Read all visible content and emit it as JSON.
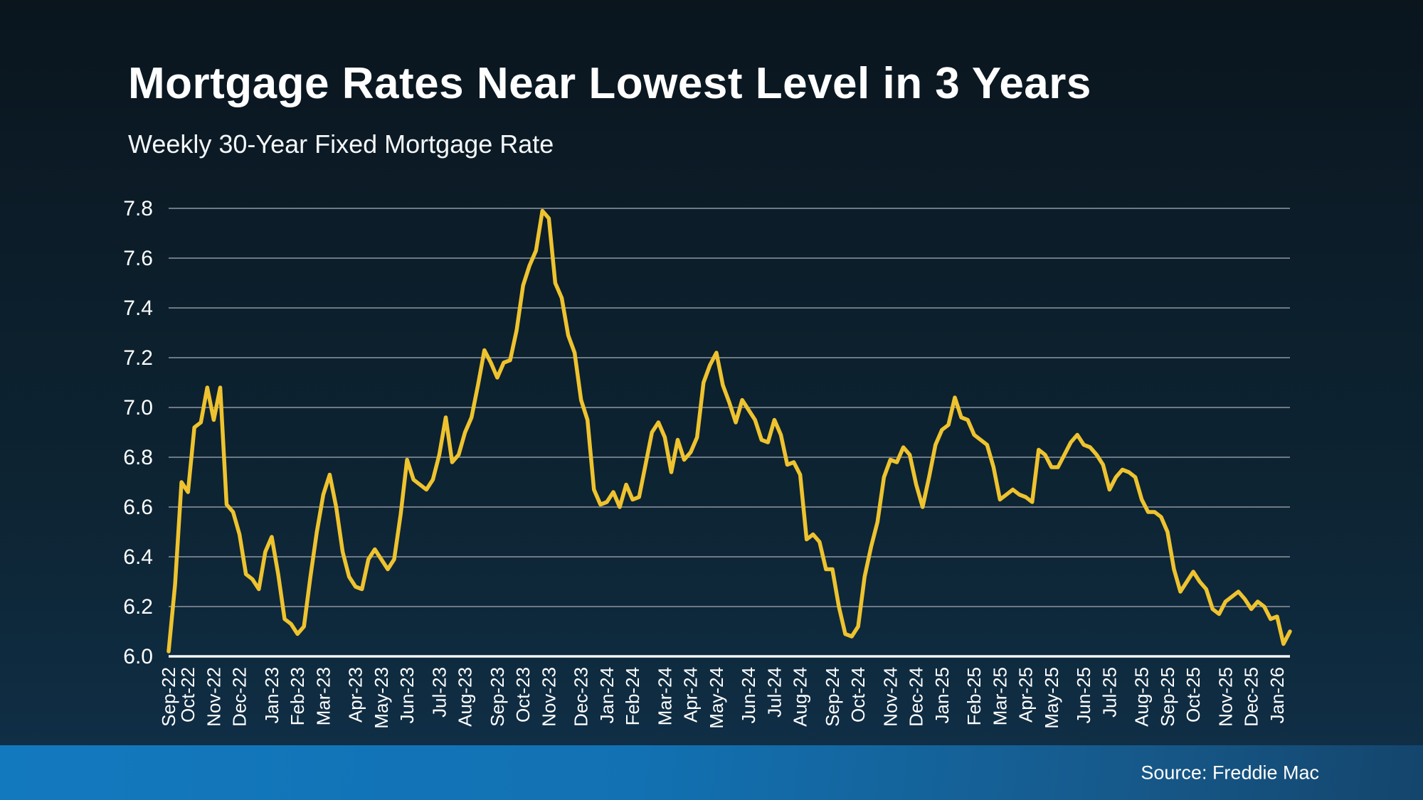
{
  "header": {
    "title": "Mortgage Rates Near Lowest Level in 3 Years",
    "subtitle": "Weekly 30-Year Fixed Mortgage Rate"
  },
  "footer": {
    "source": "Source: Freddie Mac"
  },
  "colors": {
    "background_top": "#0a151e",
    "background_bottom": "#103049",
    "line": "#eec32f",
    "gridline": "#6e7a85",
    "axis_line": "#f5f7f8",
    "text": "#ffffff",
    "footer_bar_left": "#1379bf",
    "footer_bar_right": "#14456c"
  },
  "chart_data": {
    "type": "line",
    "title": "Mortgage Rates Near Lowest Level in 3 Years",
    "subtitle": "Weekly 30-Year Fixed Mortgage Rate",
    "source": "Source: Freddie Mac",
    "legend": "none",
    "grid": true,
    "ylim": [
      6.0,
      7.8
    ],
    "y_ticks": [
      6.0,
      6.2,
      6.4,
      6.6,
      6.8,
      7.0,
      7.2,
      7.4,
      7.6,
      7.8
    ],
    "x_tick_labels": [
      "Sep-22",
      "Oct-22",
      "Nov-22",
      "Dec-22",
      "Jan-23",
      "Feb-23",
      "Mar-23",
      "Apr-23",
      "May-23",
      "Jun-23",
      "Jul-23",
      "Aug-23",
      "Sep-23",
      "Oct-23",
      "Nov-23",
      "Dec-23",
      "Jan-24",
      "Feb-24",
      "Mar-24",
      "Apr-24",
      "May-24",
      "Jun-24",
      "Jul-24",
      "Aug-24",
      "Sep-24",
      "Oct-24",
      "Nov-24",
      "Dec-24",
      "Jan-25",
      "Feb-25",
      "Mar-25",
      "Apr-25",
      "May-25",
      "Jun-25",
      "Jul-25",
      "Aug-25",
      "Sep-25",
      "Oct-25",
      "Nov-25",
      "Dec-25",
      "Jan-26"
    ],
    "x_tick_indices": [
      0,
      3,
      7,
      11,
      16,
      20,
      24,
      29,
      33,
      37,
      42,
      46,
      51,
      55,
      59,
      64,
      68,
      72,
      77,
      81,
      85,
      90,
      94,
      98,
      103,
      107,
      112,
      116,
      120,
      125,
      129,
      133,
      137,
      142,
      146,
      151,
      155,
      159,
      164,
      168,
      172
    ],
    "series": [
      {
        "name": "Weekly 30-Year Fixed Mortgage Rate",
        "frequency": "weekly",
        "color": "#eec32f",
        "values": [
          6.02,
          6.29,
          6.7,
          6.66,
          6.92,
          6.94,
          7.08,
          6.95,
          7.08,
          6.61,
          6.58,
          6.49,
          6.33,
          6.31,
          6.27,
          6.42,
          6.48,
          6.33,
          6.15,
          6.13,
          6.09,
          6.12,
          6.32,
          6.5,
          6.65,
          6.73,
          6.6,
          6.42,
          6.32,
          6.28,
          6.27,
          6.39,
          6.43,
          6.39,
          6.35,
          6.39,
          6.57,
          6.79,
          6.71,
          6.69,
          6.67,
          6.71,
          6.81,
          6.96,
          6.78,
          6.81,
          6.9,
          6.96,
          7.09,
          7.23,
          7.18,
          7.12,
          7.18,
          7.19,
          7.31,
          7.49,
          7.57,
          7.63,
          7.79,
          7.76,
          7.5,
          7.44,
          7.29,
          7.22,
          7.03,
          6.95,
          6.67,
          6.61,
          6.62,
          6.66,
          6.6,
          6.69,
          6.63,
          6.64,
          6.77,
          6.9,
          6.94,
          6.88,
          6.74,
          6.87,
          6.79,
          6.82,
          6.88,
          7.1,
          7.17,
          7.22,
          7.09,
          7.02,
          6.94,
          7.03,
          6.99,
          6.95,
          6.87,
          6.86,
          6.95,
          6.89,
          6.77,
          6.78,
          6.73,
          6.47,
          6.49,
          6.46,
          6.35,
          6.35,
          6.2,
          6.09,
          6.08,
          6.12,
          6.32,
          6.44,
          6.54,
          6.72,
          6.79,
          6.78,
          6.84,
          6.81,
          6.69,
          6.6,
          6.72,
          6.85,
          6.91,
          6.93,
          7.04,
          6.96,
          6.95,
          6.89,
          6.87,
          6.85,
          6.76,
          6.63,
          6.65,
          6.67,
          6.65,
          6.64,
          6.62,
          6.83,
          6.81,
          6.76,
          6.76,
          6.81,
          6.86,
          6.89,
          6.85,
          6.84,
          6.81,
          6.77,
          6.67,
          6.72,
          6.75,
          6.74,
          6.72,
          6.63,
          6.58,
          6.58,
          6.56,
          6.5,
          6.35,
          6.26,
          6.3,
          6.34,
          6.3,
          6.27,
          6.19,
          6.17,
          6.22,
          6.24,
          6.26,
          6.23,
          6.19,
          6.22,
          6.2,
          6.15,
          6.16,
          6.05,
          6.1
        ]
      }
    ]
  }
}
